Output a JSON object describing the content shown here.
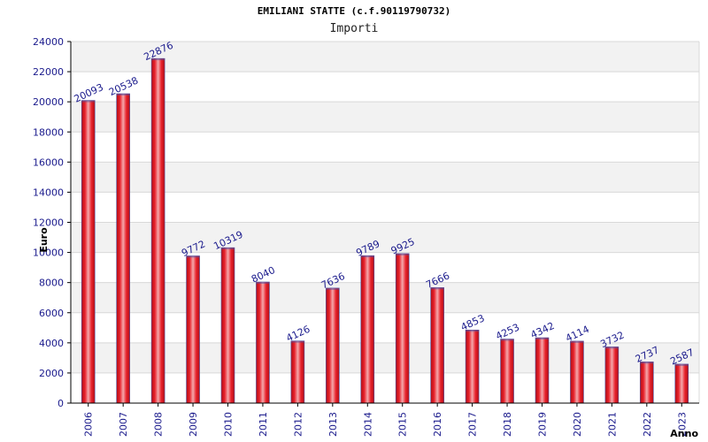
{
  "chart_data": {
    "type": "bar",
    "title": "EMILIANI STATTE (c.f.90119790732)",
    "subtitle": "Importi",
    "xlabel": "Anno",
    "ylabel": "Euro",
    "ylim": [
      0,
      24000
    ],
    "yticks": [
      0,
      2000,
      4000,
      6000,
      8000,
      10000,
      12000,
      14000,
      16000,
      18000,
      20000,
      22000,
      24000
    ],
    "grid": true,
    "categories": [
      "2006",
      "2007",
      "2008",
      "2009",
      "2010",
      "2011",
      "2012",
      "2013",
      "2014",
      "2015",
      "2016",
      "2017",
      "2018",
      "2019",
      "2020",
      "2021",
      "2022",
      "2023"
    ],
    "values": [
      20093,
      20538,
      22876,
      9772,
      10319,
      8040,
      4126,
      7636,
      9789,
      9925,
      7666,
      4853,
      4253,
      4342,
      4114,
      3732,
      2737,
      2587
    ],
    "data_labels": [
      "20093",
      "20538",
      "22876",
      "9772",
      "10319",
      "8040",
      "4126",
      "7636",
      "9789",
      "9925",
      "7666",
      "4853",
      "4253",
      "4342",
      "4114",
      "3732",
      "2737",
      "2587"
    ],
    "colors": {
      "bar_center": "#f4a8ac",
      "bar_main": "#e8202a",
      "bar_edge": "#b01018",
      "bar_outline": "#5050a0",
      "label": "#1a1a8c",
      "axis": "#000000",
      "grid_band": "#f2f2f2",
      "grid_line": "#d8d8d8"
    }
  }
}
